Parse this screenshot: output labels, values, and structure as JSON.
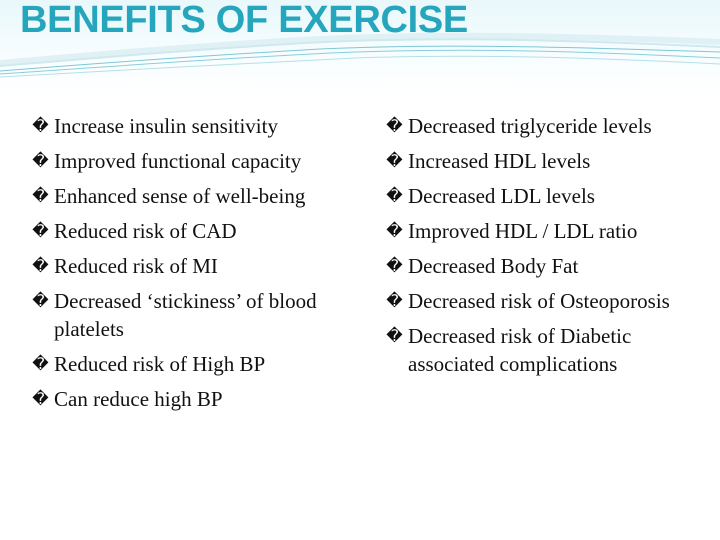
{
  "slide": {
    "title": "BENEFITS OF EXERCISE",
    "bullet_icon": "replacement-character-icon",
    "bullet_char": "�",
    "accent_color": "#25a6bd",
    "left_items": [
      "Increase insulin sensitivity",
      "Improved functional capacity",
      "Enhanced sense of well-being",
      "Reduced risk of CAD",
      "Reduced risk of MI",
      "Decreased ‘stickiness’ of blood platelets",
      "Reduced risk of High BP",
      "Can reduce high BP"
    ],
    "right_items": [
      "Decreased triglyceride levels",
      "Increased HDL levels",
      "Decreased LDL levels",
      "Improved HDL / LDL ratio",
      "Decreased Body Fat",
      "Decreased risk of Osteoporosis",
      "Decreased risk of Diabetic associated complications"
    ]
  }
}
